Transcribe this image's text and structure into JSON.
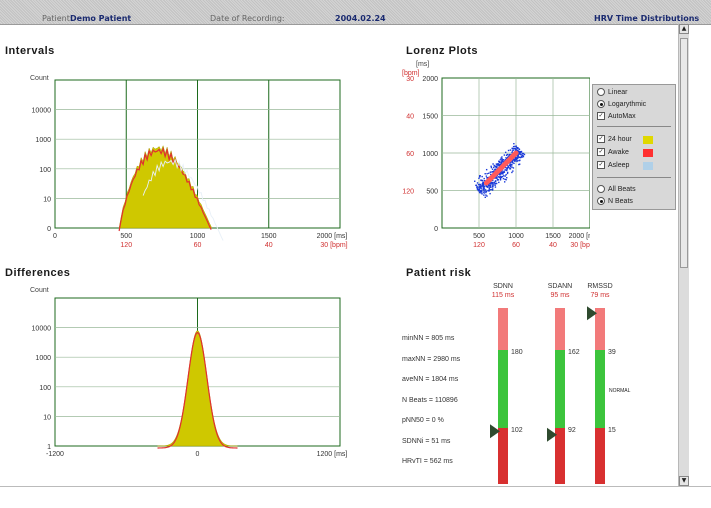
{
  "header": {
    "patient_label": "Patient:",
    "patient_value": "Demo Patient",
    "date_label": "Date of Recording:",
    "date_value": "2004.02.24",
    "app_title": "HRV Time Distributions"
  },
  "intervals": {
    "title": "Intervals",
    "y_label": "Count",
    "y_ticks": [
      "10000",
      "1000",
      "100",
      "10",
      "0"
    ],
    "x_ticks": [
      "0",
      "500",
      "1000",
      "1500",
      "2000 [ms]"
    ],
    "x_bpm_ticks": [
      "120",
      "60",
      "40",
      "30  [bpm]"
    ]
  },
  "lorenz": {
    "title": "Lorenz Plots",
    "y_unit_ms": "[ms]",
    "y_unit_bpm": "[bpm]",
    "y_ticks": [
      "2000",
      "1500",
      "1000",
      "500",
      "0"
    ],
    "y_bpm_ticks": [
      "30",
      "40",
      "60",
      "120"
    ],
    "x_ticks": [
      "500",
      "1000",
      "1500",
      "2000 [ms]"
    ],
    "x_bpm_ticks": [
      "120",
      "60",
      "40",
      "30  [bpm]"
    ]
  },
  "options": {
    "linear": "Linear",
    "logarithmic": "Logarythmic",
    "automax": "AutoMax",
    "h24": "24 hour",
    "awake": "Awake",
    "asleep": "Asleep",
    "all_beats": "All Beats",
    "n_beats": "N Beats",
    "scale_selected": "Logarythmic",
    "beats_selected": "N Beats",
    "h24_color": "#e0d800",
    "awake_color": "#ff3030",
    "asleep_color": "#b0d0e8"
  },
  "differences": {
    "title": "Differences",
    "y_label": "Count",
    "y_ticks": [
      "10000",
      "1000",
      "100",
      "10",
      "1"
    ],
    "x_ticks": [
      "-1200",
      "0",
      "1200 [ms]"
    ]
  },
  "risk": {
    "title": "Patient risk",
    "stats": [
      "minNN = 805 ms",
      "maxNN = 2980 ms",
      "aveNN = 1804 ms",
      "N Beats = 110896",
      "pNN50 = 0 %",
      "SDNNi = 51 ms",
      "HRvTI = 562 ms"
    ],
    "bars": [
      {
        "name": "SDNN",
        "value_text": "115 ms",
        "upper_threshold": "180",
        "lower_threshold": "102",
        "marker_level": 0.3,
        "status": ""
      },
      {
        "name": "SDANN",
        "value_text": "95 ms",
        "upper_threshold": "162",
        "lower_threshold": "92",
        "marker_level": 0.28,
        "status": ""
      },
      {
        "name": "RMSSD",
        "value_text": "79 ms",
        "upper_threshold": "39",
        "lower_threshold": "15",
        "marker_level": 0.97,
        "status": "NORMAL"
      }
    ],
    "colors": {
      "high": "#f27a7a",
      "normal": "#3cc43c",
      "low": "#d83030"
    }
  }
}
